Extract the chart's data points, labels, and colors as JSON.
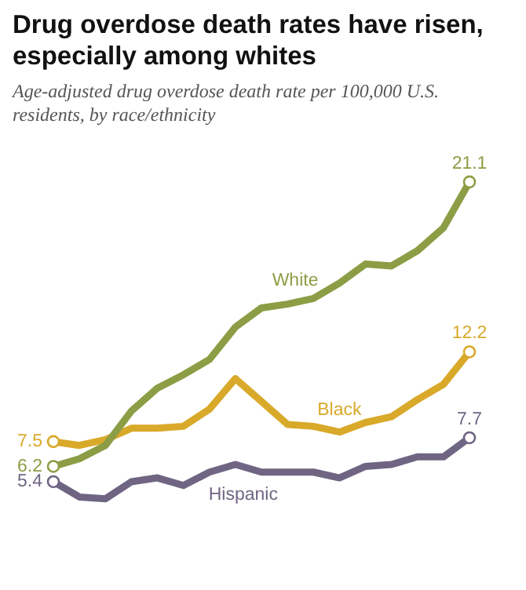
{
  "chart_data": {
    "type": "line",
    "title": "Drug overdose death rates have risen, especially among whites",
    "subtitle": "Age-adjusted drug overdose death rate per 100,000 U.S. residents, by race/ethnicity",
    "categories": [
      null,
      null,
      null,
      null,
      null,
      null,
      null,
      null,
      null,
      null,
      null,
      null,
      null,
      null,
      null,
      null,
      null
    ],
    "legend": false,
    "series": [
      {
        "name": "White",
        "color": "#8c9d45",
        "values": [
          6.2,
          6.6,
          7.3,
          9.1,
          10.3,
          11.0,
          11.8,
          13.5,
          14.5,
          14.7,
          15.0,
          15.8,
          16.8,
          16.7,
          17.5,
          18.7,
          21.1
        ],
        "value_labels": [
          "6.2",
          null,
          null,
          null,
          null,
          null,
          null,
          null,
          null,
          null,
          null,
          null,
          null,
          null,
          null,
          null,
          "21.1"
        ]
      },
      {
        "name": "Black",
        "color": "#d9a92a",
        "values": [
          7.5,
          7.3,
          7.6,
          8.2,
          8.2,
          8.3,
          9.2,
          10.8,
          9.6,
          8.4,
          8.3,
          8.0,
          8.5,
          8.8,
          9.7,
          10.5,
          12.2
        ],
        "value_labels": [
          "7.5",
          null,
          null,
          null,
          null,
          null,
          null,
          null,
          null,
          null,
          null,
          null,
          null,
          null,
          null,
          null,
          "12.2"
        ]
      },
      {
        "name": "Hispanic",
        "color": "#6f6583",
        "values": [
          5.4,
          4.6,
          4.5,
          5.4,
          5.6,
          5.2,
          5.9,
          6.3,
          5.9,
          5.9,
          5.9,
          5.6,
          6.2,
          6.3,
          6.7,
          6.7,
          7.7
        ],
        "value_labels": [
          "5.4",
          null,
          null,
          null,
          null,
          null,
          null,
          null,
          null,
          null,
          null,
          null,
          null,
          null,
          null,
          null,
          "7.7"
        ]
      }
    ]
  }
}
